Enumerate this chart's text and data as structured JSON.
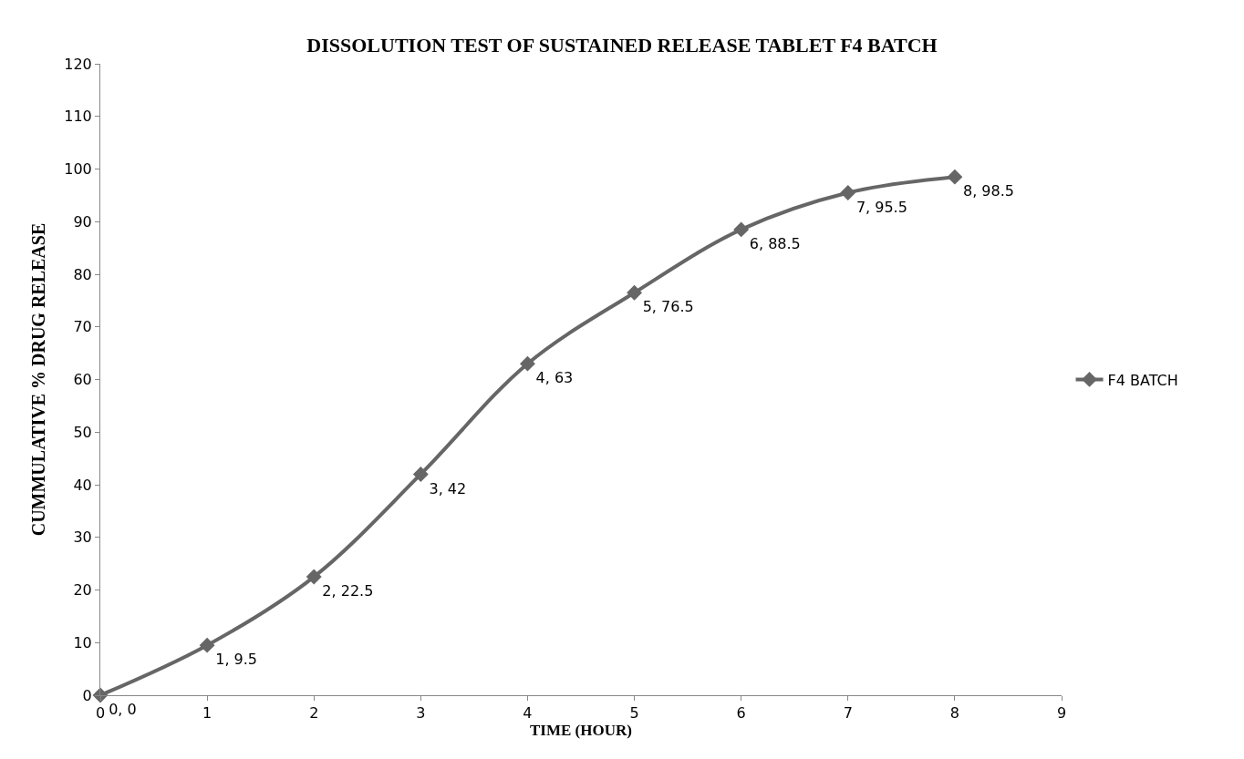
{
  "chart_data": {
    "type": "line",
    "title": "DISSOLUTION TEST OF SUSTAINED RELEASE TABLET F4 BATCH",
    "xlabel": "TIME (HOUR)",
    "ylabel": "CUMMULATIVE % DRUG RELEASE",
    "x": [
      0,
      1,
      2,
      3,
      4,
      5,
      6,
      7,
      8
    ],
    "series": [
      {
        "name": "F4 BATCH",
        "color": "#666666",
        "values": [
          0,
          9.5,
          22.5,
          42,
          63,
          76.5,
          88.5,
          95.5,
          98.5
        ],
        "value_labels": [
          "0, 0",
          "1, 9.5",
          "2, 22.5",
          "3, 42",
          "4, 63",
          "5, 76.5",
          "6, 88.5",
          "7, 95.5",
          "8, 98.5"
        ]
      }
    ],
    "xlim": [
      0,
      9
    ],
    "xticks": [
      0,
      1,
      2,
      3,
      4,
      5,
      6,
      7,
      8,
      9
    ],
    "ylim": [
      0,
      120
    ],
    "yticks": [
      0,
      10,
      20,
      30,
      40,
      50,
      60,
      70,
      80,
      90,
      100,
      110,
      120
    ],
    "legend": "right",
    "marker": "diamond",
    "line_style": "solid"
  }
}
